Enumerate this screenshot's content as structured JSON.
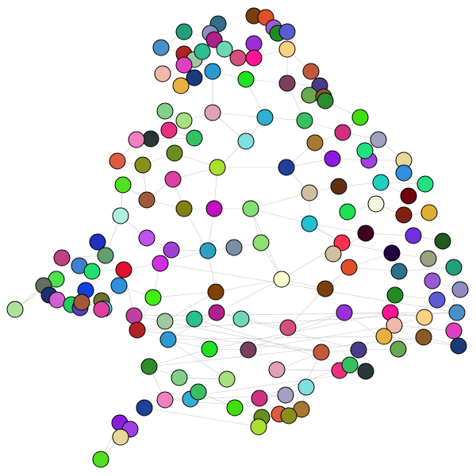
{
  "diagram": {
    "type": "network-graph",
    "background": "#ffffff",
    "edge_color": "#c8c8c8",
    "node_stroke": "#000000",
    "node_count": 180,
    "node_colors": [
      "#7a3f0e",
      "#e04e2a",
      "#2f6f8a",
      "#22a07b",
      "#8e8ec0",
      "#9b59d6",
      "#228b22",
      "#5b5bd6",
      "#4a90c8",
      "#b22222",
      "#a0c8a0",
      "#2bbf8f",
      "#b0208a",
      "#70d6b8",
      "#d2507a",
      "#9b30d6",
      "#ff1493",
      "#ffd080",
      "#f0b8a8",
      "#e040c0",
      "#1a3a7a",
      "#e8b040",
      "#2a9ad0",
      "#22e022",
      "#7a3f5f",
      "#c0583a",
      "#483c8a",
      "#6aa84f",
      "#8b5a2b",
      "#2e8b2e",
      "#80d088",
      "#a8e080",
      "#e0a0b8",
      "#e83080",
      "#34c060",
      "#283838",
      "#f080c0",
      "#30b0d0",
      "#38c060",
      "#40e010",
      "#d03080",
      "#a0a0c0",
      "#80e0e0",
      "#a87830",
      "#e05a40",
      "#88901a",
      "#6b8e23",
      "#a8e030",
      "#20409a",
      "#8a1ae0",
      "#a040e0",
      "#e8d898",
      "#50e020",
      "#a05a3a",
      "#e040a0",
      "#3090e0",
      "#20e080",
      "#d0c0a0",
      "#603010",
      "#20d0c0",
      "#700010",
      "#808010",
      "#c010c0",
      "#80e070",
      "#20e050",
      "#f0f8e0",
      "#802010",
      "#e0b030",
      "#b0f0e0",
      "#20c0d0",
      "#400020",
      "#7030e0",
      "#205a20",
      "#c050f0",
      "#a040d0",
      "#30a0c0",
      "#7890a8",
      "#90e070",
      "#2030c0",
      "#60a070",
      "#c04080",
      "#4080d0",
      "#20e070",
      "#e01030",
      "#d030e0",
      "#ff3050",
      "#200040",
      "#a0a080",
      "#50e050",
      "#607060",
      "#1a3070",
      "#d060d0",
      "#20d060",
      "#1040e0",
      "#5040c0",
      "#707030",
      "#50d8e0",
      "#b0e0a0",
      "#c040a0",
      "#40f010",
      "#804000",
      "#ffffd0"
    ]
  }
}
